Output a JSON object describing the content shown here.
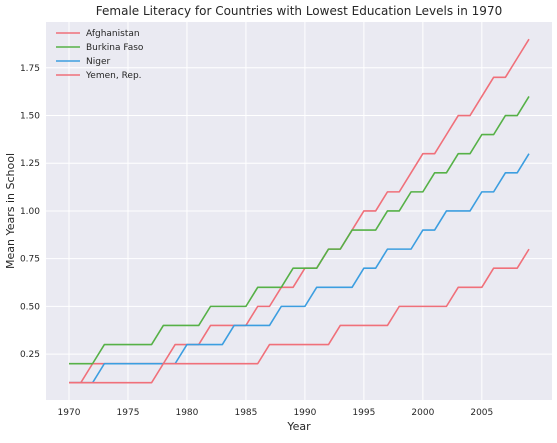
{
  "chart_data": {
    "type": "line",
    "title": "Female Literacy for Countries with Lowest Education Levels in 1970",
    "xlabel": "Year",
    "ylabel": "Mean Years in School",
    "xlim": [
      1968.05,
      2010.95
    ],
    "ylim": [
      0.0095,
      1.99
    ],
    "x_ticks": [
      1970,
      1975,
      1980,
      1985,
      1990,
      1995,
      2000,
      2005
    ],
    "y_ticks": [
      0.25,
      0.5,
      0.75,
      1.0,
      1.25,
      1.5,
      1.75
    ],
    "y_tick_labels": [
      "0.25",
      "0.50",
      "0.75",
      "1.00",
      "1.25",
      "1.50",
      "1.75"
    ],
    "grid": true,
    "legend_position": "top-left",
    "x": [
      1970,
      1971,
      1972,
      1973,
      1974,
      1975,
      1976,
      1977,
      1978,
      1979,
      1980,
      1981,
      1982,
      1983,
      1984,
      1985,
      1986,
      1987,
      1988,
      1989,
      1990,
      1991,
      1992,
      1993,
      1994,
      1995,
      1996,
      1997,
      1998,
      1999,
      2000,
      2001,
      2002,
      2003,
      2004,
      2005,
      2006,
      2007,
      2008,
      2009
    ],
    "series": [
      {
        "name": "Afghanistan",
        "color": "#f0707a",
        "values": [
          0.1,
          0.1,
          0.2,
          0.2,
          0.2,
          0.2,
          0.2,
          0.2,
          0.2,
          0.3,
          0.3,
          0.3,
          0.4,
          0.4,
          0.4,
          0.4,
          0.5,
          0.5,
          0.6,
          0.6,
          0.7,
          0.7,
          0.8,
          0.8,
          0.9,
          1.0,
          1.0,
          1.1,
          1.1,
          1.2,
          1.3,
          1.3,
          1.4,
          1.5,
          1.5,
          1.6,
          1.7,
          1.7,
          1.8,
          1.9
        ]
      },
      {
        "name": "Burkina Faso",
        "color": "#56b147",
        "values": [
          0.2,
          0.2,
          0.2,
          0.3,
          0.3,
          0.3,
          0.3,
          0.3,
          0.4,
          0.4,
          0.4,
          0.4,
          0.5,
          0.5,
          0.5,
          0.5,
          0.6,
          0.6,
          0.6,
          0.7,
          0.7,
          0.7,
          0.8,
          0.8,
          0.9,
          0.9,
          0.9,
          1.0,
          1.0,
          1.1,
          1.1,
          1.2,
          1.2,
          1.3,
          1.3,
          1.4,
          1.4,
          1.5,
          1.5,
          1.6
        ]
      },
      {
        "name": "Niger",
        "color": "#3c9ee0",
        "values": [
          0.1,
          0.1,
          0.1,
          0.2,
          0.2,
          0.2,
          0.2,
          0.2,
          0.2,
          0.2,
          0.3,
          0.3,
          0.3,
          0.3,
          0.4,
          0.4,
          0.4,
          0.4,
          0.5,
          0.5,
          0.5,
          0.6,
          0.6,
          0.6,
          0.6,
          0.7,
          0.7,
          0.8,
          0.8,
          0.8,
          0.9,
          0.9,
          1.0,
          1.0,
          1.0,
          1.1,
          1.1,
          1.2,
          1.2,
          1.3
        ]
      },
      {
        "name": "Yemen, Rep.",
        "color": "#f0707a",
        "values": [
          0.1,
          0.1,
          0.1,
          0.1,
          0.1,
          0.1,
          0.1,
          0.1,
          0.2,
          0.2,
          0.2,
          0.2,
          0.2,
          0.2,
          0.2,
          0.2,
          0.2,
          0.3,
          0.3,
          0.3,
          0.3,
          0.3,
          0.3,
          0.4,
          0.4,
          0.4,
          0.4,
          0.4,
          0.5,
          0.5,
          0.5,
          0.5,
          0.5,
          0.6,
          0.6,
          0.6,
          0.7,
          0.7,
          0.7,
          0.8
        ]
      }
    ]
  }
}
